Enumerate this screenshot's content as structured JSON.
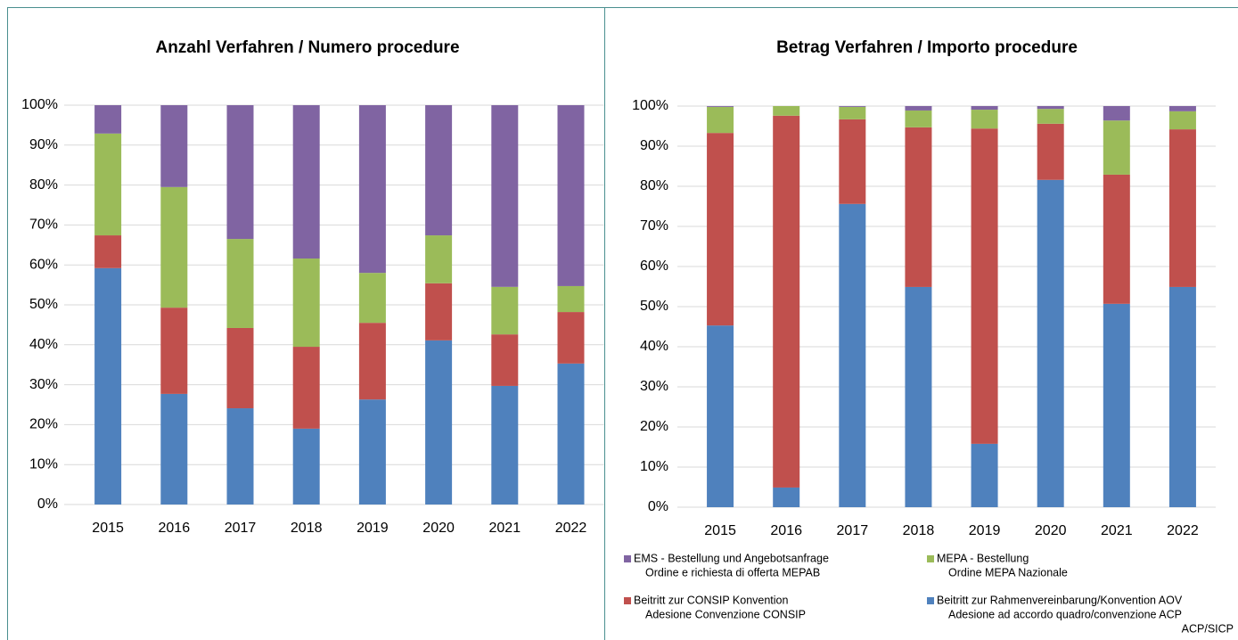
{
  "chart_data": [
    {
      "type": "stacked_bar",
      "title": "Anzahl Verfahren / Numero procedure",
      "categories": [
        "2015",
        "2016",
        "2017",
        "2018",
        "2019",
        "2020",
        "2021",
        "2022"
      ],
      "series": [
        {
          "color": "#4f81bd",
          "values": [
            59.2,
            27.7,
            24.1,
            19.0,
            26.3,
            41.1,
            29.7,
            35.3
          ]
        },
        {
          "color": "#c0504d",
          "values": [
            8.2,
            21.6,
            20.1,
            20.5,
            19.2,
            14.3,
            12.9,
            12.9
          ]
        },
        {
          "color": "#9bbb59",
          "values": [
            25.5,
            30.2,
            22.3,
            22.1,
            12.5,
            12.0,
            11.9,
            6.5
          ]
        },
        {
          "color": "#8064a2",
          "values": [
            7.1,
            20.5,
            33.5,
            38.4,
            42.0,
            32.6,
            45.5,
            45.3
          ]
        }
      ],
      "ylim": [
        0,
        100
      ],
      "yticks": [
        {
          "value": 0,
          "label": "0%"
        },
        {
          "value": 10,
          "label": "10%"
        },
        {
          "value": 20,
          "label": "20%"
        },
        {
          "value": 30,
          "label": "30%"
        },
        {
          "value": 40,
          "label": "40%"
        },
        {
          "value": 50,
          "label": "50%"
        },
        {
          "value": 60,
          "label": "60%"
        },
        {
          "value": 70,
          "label": "70%"
        },
        {
          "value": 80,
          "label": "80%"
        },
        {
          "value": 90,
          "label": "90%"
        },
        {
          "value": 100,
          "label": "100%"
        }
      ],
      "grid": true
    },
    {
      "type": "stacked_bar",
      "title": "Betrag Verfahren / Importo procedure",
      "categories": [
        "2015",
        "2016",
        "2017",
        "2018",
        "2019",
        "2020",
        "2021",
        "2022"
      ],
      "series": [
        {
          "name": [
            "Beitritt zur Rahmenvereinbarung/Konvention AOV",
            "Adesione ad accordo quadro/convenzione ACP",
            "ACP/SICP"
          ],
          "color": "#4f81bd",
          "values": [
            45.3,
            4.9,
            75.6,
            54.9,
            15.8,
            81.6,
            50.7,
            54.9
          ]
        },
        {
          "name": [
            "Beitritt zur CONSIP Konvention",
            "Adesione Convenzione CONSIP"
          ],
          "color": "#c0504d",
          "values": [
            48.0,
            92.7,
            21.1,
            39.8,
            78.6,
            14.0,
            32.2,
            39.3
          ]
        },
        {
          "name": [
            "MEPA - Bestellung",
            "Ordine MEPA Nazionale"
          ],
          "color": "#9bbb59",
          "values": [
            6.5,
            2.4,
            3.1,
            4.2,
            4.7,
            3.7,
            13.5,
            4.5
          ]
        },
        {
          "name": [
            "EMS - Bestellung und Angebotsanfrage",
            "Ordine e richiesta di offerta MEPAB"
          ],
          "color": "#8064a2",
          "values": [
            0.2,
            0,
            0.2,
            1.1,
            0.9,
            0.7,
            3.6,
            1.3
          ]
        }
      ],
      "ylim": [
        0,
        100
      ],
      "yticks": [
        {
          "value": 0,
          "label": "0%"
        },
        {
          "value": 10,
          "label": "10%"
        },
        {
          "value": 20,
          "label": "20%"
        },
        {
          "value": 30,
          "label": "30%"
        },
        {
          "value": 40,
          "label": "40%"
        },
        {
          "value": 50,
          "label": "50%"
        },
        {
          "value": 60,
          "label": "60%"
        },
        {
          "value": 70,
          "label": "70%"
        },
        {
          "value": 80,
          "label": "80%"
        },
        {
          "value": 90,
          "label": "90%"
        },
        {
          "value": 100,
          "label": "100%"
        }
      ],
      "grid": true
    }
  ]
}
